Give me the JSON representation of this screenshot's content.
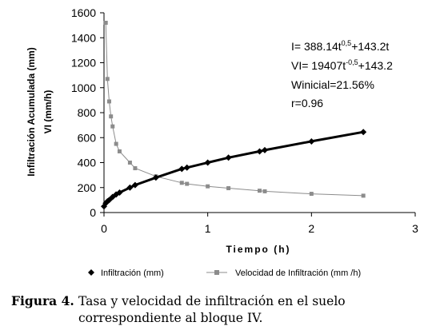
{
  "chart_data": {
    "type": "line",
    "xlabel": "Tiempo (h)",
    "ylabel_line1": "Infiltración Acumulada (mm)",
    "ylabel_line2": "VI (mm/h)",
    "xlim": [
      0,
      3
    ],
    "ylim": [
      0,
      1600
    ],
    "x_ticks": [
      "0",
      "1",
      "2",
      "3"
    ],
    "y_ticks": [
      "0",
      "200",
      "400",
      "600",
      "800",
      "1000",
      "1200",
      "1400",
      "1600"
    ],
    "grid": false,
    "legend_position": "bottom",
    "annotations": {
      "eq1": {
        "pre": "I= 388.14t",
        "sup": "0,5",
        "post": "+143.2t"
      },
      "eq2": {
        "pre": "VI= 19407t",
        "sup": "-0,5",
        "post": "+143.2"
      },
      "eq3": "Winicial=21.56%",
      "eq4": "r=0.96"
    },
    "series": [
      {
        "name": "Infiltración (mm)",
        "marker": "diamond",
        "color": "#000000",
        "x": [
          0.0,
          0.017,
          0.033,
          0.05,
          0.083,
          0.117,
          0.15,
          0.25,
          0.3,
          0.5,
          0.75,
          0.8,
          1.0,
          1.2,
          1.5,
          1.55,
          2.0,
          2.5
        ],
        "y": [
          50,
          75,
          90,
          100,
          125,
          145,
          160,
          200,
          220,
          280,
          350,
          360,
          400,
          440,
          490,
          500,
          570,
          645
        ]
      },
      {
        "name": "Velocidad de Infiltración (mm /h)",
        "marker": "square",
        "color": "#8c8c8c",
        "x": [
          0.017,
          0.033,
          0.05,
          0.067,
          0.083,
          0.117,
          0.15,
          0.25,
          0.3,
          0.5,
          0.75,
          0.8,
          1.0,
          1.2,
          1.5,
          1.55,
          2.0,
          2.5
        ],
        "y": [
          1520,
          1070,
          890,
          770,
          690,
          550,
          490,
          400,
          355,
          290,
          238,
          230,
          210,
          195,
          175,
          170,
          150,
          135
        ]
      }
    ]
  },
  "caption": {
    "label": "Figura 4.",
    "line1": "Tasa y velocidad de infiltración en el suelo",
    "line2": "correspondiente al bloque IV."
  }
}
